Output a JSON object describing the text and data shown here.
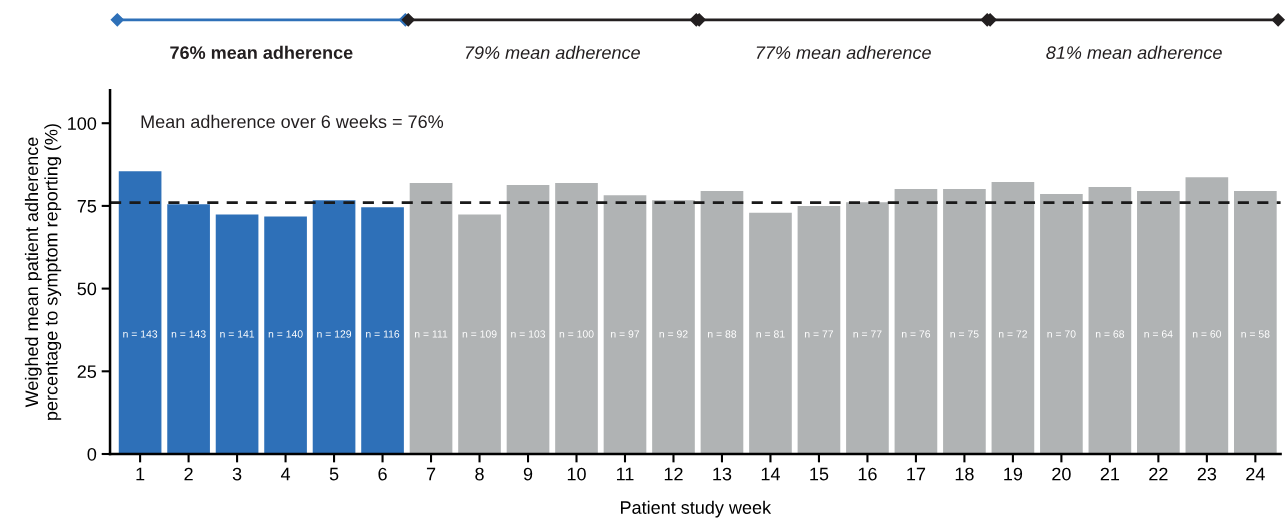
{
  "chart_data": {
    "type": "bar",
    "xlabel": "Patient study week",
    "ylabel": "Weighed mean patient adherence\npercentage to symptom reporting (%)",
    "categories": [
      "1",
      "2",
      "3",
      "4",
      "5",
      "6",
      "7",
      "8",
      "9",
      "10",
      "11",
      "12",
      "13",
      "14",
      "15",
      "16",
      "17",
      "18",
      "19",
      "20",
      "21",
      "22",
      "23",
      "24"
    ],
    "values": [
      85.5,
      75.5,
      72.4,
      71.8,
      76.7,
      74.6,
      81.9,
      72.4,
      81.3,
      81.9,
      78.2,
      76.7,
      79.5,
      72.9,
      75.0,
      76.1,
      80.1,
      80.1,
      82.2,
      78.6,
      80.7,
      79.5,
      83.7,
      79.5
    ],
    "colors": [
      "#2e70b8",
      "#2e70b8",
      "#2e70b8",
      "#2e70b8",
      "#2e70b8",
      "#2e70b8",
      "#b0b3b4",
      "#b0b3b4",
      "#b0b3b4",
      "#b0b3b4",
      "#b0b3b4",
      "#b0b3b4",
      "#b0b3b4",
      "#b0b3b4",
      "#b0b3b4",
      "#b0b3b4",
      "#b0b3b4",
      "#b0b3b4",
      "#b0b3b4",
      "#b0b3b4",
      "#b0b3b4",
      "#b0b3b4",
      "#b0b3b4",
      "#b0b3b4"
    ],
    "ylim": [
      0,
      110
    ],
    "yticks": [
      0,
      25,
      50,
      75,
      100
    ],
    "ref_lines": [
      {
        "axis": "y",
        "value": 76,
        "label": "Mean adherence over 6 weeks = 76%",
        "color": "#1a1a1a",
        "line_style": "dashed"
      }
    ],
    "annotations": [
      "76% mean adherence",
      "79% mean adherence",
      "77% mean adherence",
      "81% mean adherence",
      "n = 143",
      "n = 143",
      "n = 141",
      "n = 140",
      "n = 129",
      "n = 116",
      "n = 111",
      "n = 109",
      "n = 103",
      "n = 100",
      "n = 97",
      "n = 92",
      "n = 88",
      "n = 81",
      "n = 77",
      "n = 77",
      "n = 76",
      "n = 75",
      "n = 72",
      "n = 70",
      "n = 68",
      "n = 64",
      "n = 60",
      "n = 58"
    ],
    "grid": false,
    "legend": false
  }
}
